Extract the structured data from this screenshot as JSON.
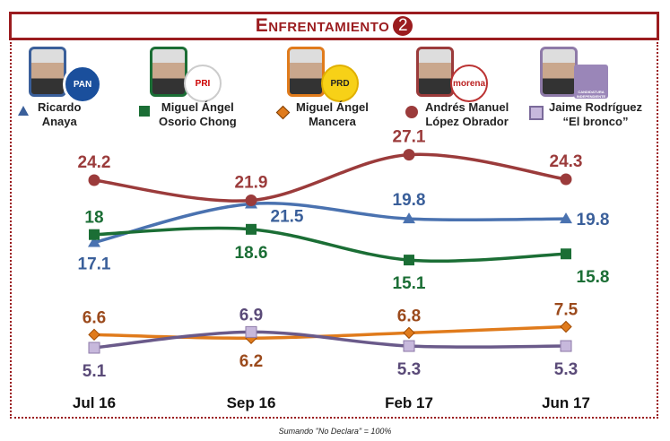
{
  "title": "Enfrentamiento",
  "title_number": "2",
  "footnote": "Sumando \"No Declara\" = 100%",
  "candidates": [
    {
      "name1": "Ricardo",
      "name2": "Anaya",
      "party": "PAN",
      "color": "#3a5f9a",
      "marker": "triangle"
    },
    {
      "name1": "Miguel Ángel",
      "name2": "Osorio Chong",
      "party": "PRI",
      "color": "#1b6e35",
      "marker": "square"
    },
    {
      "name1": "Miguel  Ángel",
      "name2": "Mancera",
      "party": "PRD",
      "color": "#e07b1c",
      "marker": "diamond"
    },
    {
      "name1": "Andrés  Manuel",
      "name2": "López  Obrador",
      "party": "morena",
      "color": "#9b3b3b",
      "marker": "circle"
    },
    {
      "name1": "Jaime Rodríguez",
      "name2": "“El bronco”",
      "party": "CANDIDATURA INDEPENDIENTE",
      "color": "#8e7aa8",
      "marker": "square"
    }
  ],
  "chart_data": {
    "type": "line",
    "categories": [
      "Jul 16",
      "Sep 16",
      "Feb 17",
      "Jun 17"
    ],
    "series": [
      {
        "name": "Ricardo Anaya",
        "values": [
          17.1,
          21.5,
          19.8,
          19.8
        ],
        "color": "#3a5f9a",
        "line": "#4a72b0"
      },
      {
        "name": "Miguel Ángel Osorio Chong",
        "values": [
          18.0,
          18.6,
          15.1,
          15.8
        ],
        "color": "#1b6e35",
        "line": "#1b6e35"
      },
      {
        "name": "Miguel Ángel Mancera",
        "values": [
          6.6,
          6.2,
          6.8,
          7.5
        ],
        "color": "#9b4a1c",
        "line": "#e07b1c"
      },
      {
        "name": "Andrés Manuel López Obrador",
        "values": [
          24.2,
          21.9,
          27.1,
          24.3
        ],
        "color": "#9b3b3b",
        "line": "#9b3b3b"
      },
      {
        "name": "Jaime Rodríguez \"El bronco\"",
        "values": [
          5.1,
          6.9,
          5.3,
          5.3
        ],
        "color": "#5a4a78",
        "line": "#6a5a8a"
      }
    ],
    "grid": false
  }
}
